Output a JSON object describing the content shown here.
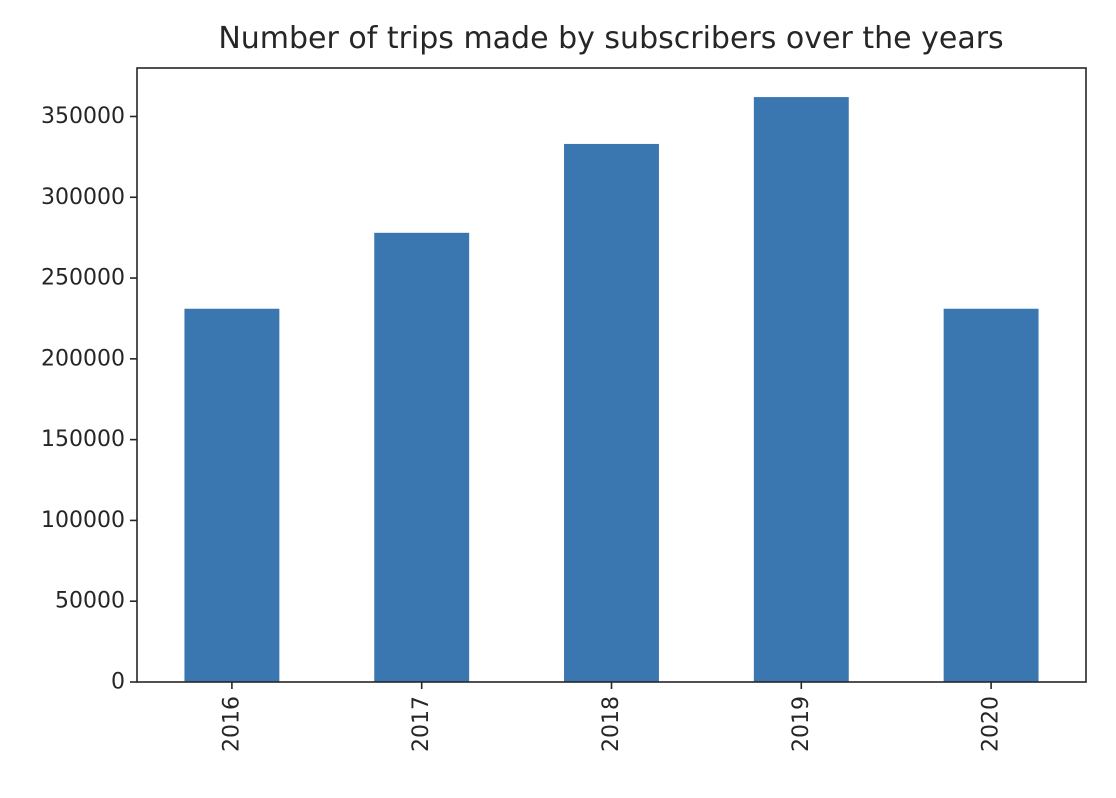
{
  "chart_data": {
    "type": "bar",
    "title": "Number of trips made by subscribers over the years",
    "xlabel": "",
    "ylabel": "",
    "categories": [
      "2016",
      "2017",
      "2018",
      "2019",
      "2020"
    ],
    "series": [
      {
        "name": "Number of trips",
        "values": [
          231000,
          278000,
          333000,
          362000,
          231000
        ]
      }
    ],
    "ylim": [
      0,
      380000
    ],
    "yticks": [
      0,
      50000,
      100000,
      150000,
      200000,
      250000,
      300000,
      350000
    ],
    "ytick_labels": [
      "0",
      "50000",
      "100000",
      "150000",
      "200000",
      "250000",
      "300000",
      "350000"
    ],
    "grid": false,
    "legend": "none",
    "bar_color": "#3A76AF",
    "axis_color": "#262626"
  }
}
